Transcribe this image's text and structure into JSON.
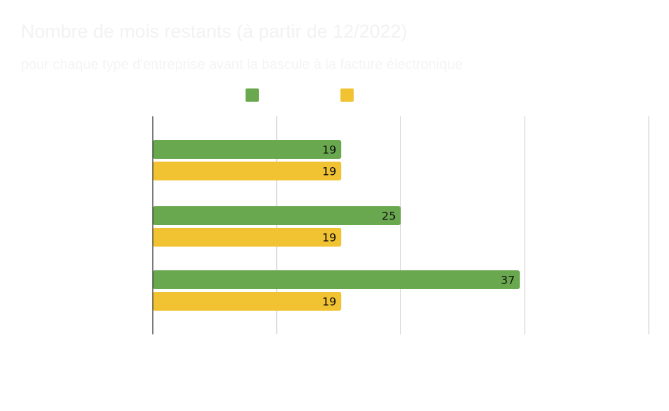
{
  "chart_data": {
    "type": "bar",
    "orientation": "horizontal",
    "title": "Nombre de mois restants (à partir de 12/2022)",
    "subtitle": "pour chaque type d'entreprise avant la bascule à la facture électronique",
    "categories": [
      "",
      "",
      ""
    ],
    "series": [
      {
        "values": [
          19,
          25,
          37
        ],
        "color": "#6aa84f"
      },
      {
        "values": [
          19,
          19,
          19
        ],
        "color": "#f1c232"
      }
    ],
    "xlim": [
      0,
      50
    ],
    "grid": true,
    "legend": "top",
    "data_labels": true
  }
}
